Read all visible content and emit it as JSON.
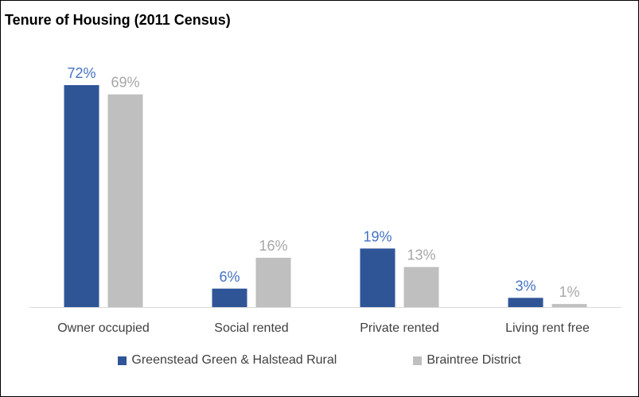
{
  "chart_data": {
    "type": "bar",
    "title": "Tenure of Housing (2011 Census)",
    "categories": [
      "Owner occupied",
      "Social rented",
      "Private rented",
      "Living rent free"
    ],
    "series": [
      {
        "name": "Greenstead Green & Halstead Rural",
        "values": [
          72,
          6,
          19,
          3
        ],
        "labels": [
          "72%",
          "6%",
          "19%",
          "3%"
        ],
        "color": "#2F5597"
      },
      {
        "name": "Braintree District",
        "values": [
          69,
          16,
          13,
          1
        ],
        "labels": [
          "69%",
          "16%",
          "13%",
          "1%"
        ],
        "color": "#BFBFBF"
      }
    ],
    "label_colors": [
      "#4472C4",
      "#A6A6A6"
    ],
    "ylim": [
      0,
      72
    ],
    "grid": false,
    "legend_position": "bottom",
    "xlabel": "",
    "ylabel": ""
  }
}
